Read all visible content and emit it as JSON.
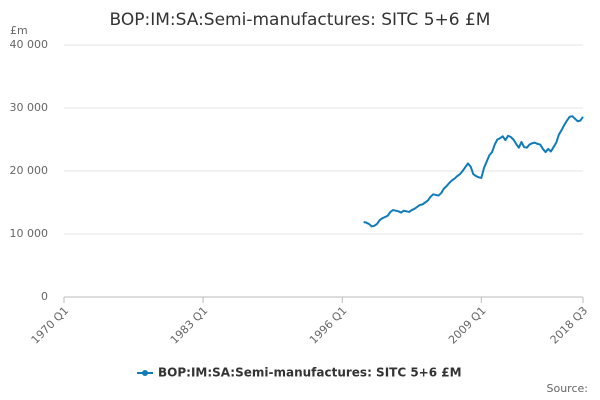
{
  "chart_data": {
    "type": "line",
    "title": "BOP:IM:SA:Semi-manufactures: SITC 5+6 £M",
    "y_label": "£m",
    "source": "Source:",
    "categories": [
      "1970 Q1",
      null,
      null,
      null,
      null,
      null,
      null,
      null,
      null,
      null,
      null,
      null,
      null,
      null,
      null,
      null,
      null,
      null,
      null,
      null,
      null,
      null,
      null,
      null,
      null,
      null,
      null,
      null,
      null,
      null,
      null,
      null,
      null,
      null,
      null,
      null,
      null,
      null,
      null,
      null,
      null,
      null,
      null,
      null,
      null,
      null,
      null,
      null,
      null,
      null,
      null,
      null,
      "1983 Q1",
      null,
      null,
      null,
      null,
      null,
      null,
      null,
      null,
      null,
      null,
      null,
      null,
      null,
      null,
      null,
      null,
      null,
      null,
      null,
      null,
      null,
      null,
      null,
      null,
      null,
      null,
      null,
      null,
      null,
      null,
      null,
      null,
      null,
      null,
      null,
      null,
      null,
      null,
      null,
      null,
      null,
      null,
      null,
      null,
      null,
      null,
      null,
      null,
      null,
      null,
      null,
      "1996 Q1",
      null,
      null,
      null,
      null,
      null,
      null,
      null,
      null,
      null,
      null,
      null,
      null,
      null,
      null,
      null,
      null,
      null,
      null,
      null,
      null,
      null,
      null,
      null,
      null,
      null,
      null,
      null,
      null,
      null,
      null,
      null,
      null,
      null,
      null,
      null,
      null,
      null,
      null,
      null,
      null,
      null,
      null,
      null,
      null,
      null,
      null,
      null,
      null,
      null,
      null,
      null,
      "2009 Q1",
      null,
      null,
      null,
      null,
      null,
      null,
      null,
      null,
      null,
      null,
      null,
      null,
      null,
      null,
      null,
      null,
      null,
      null,
      null,
      null,
      null,
      null,
      null,
      null,
      null,
      null,
      null,
      null,
      null,
      null,
      null,
      null,
      null,
      null,
      null,
      null,
      null,
      "2018 Q3"
    ],
    "series": [
      {
        "name": "BOP:IM:SA:Semi-manufactures: SITC 5+6 £M",
        "color": "#0f7bb8",
        "values": [
          null,
          null,
          null,
          null,
          null,
          null,
          null,
          null,
          null,
          null,
          null,
          null,
          null,
          null,
          null,
          null,
          null,
          null,
          null,
          null,
          null,
          null,
          null,
          null,
          null,
          null,
          null,
          null,
          null,
          null,
          null,
          null,
          null,
          null,
          null,
          null,
          null,
          null,
          null,
          null,
          null,
          null,
          null,
          null,
          null,
          null,
          null,
          null,
          null,
          null,
          null,
          null,
          null,
          null,
          null,
          null,
          null,
          null,
          null,
          null,
          null,
          null,
          null,
          null,
          null,
          null,
          null,
          null,
          null,
          null,
          null,
          null,
          null,
          null,
          null,
          null,
          null,
          null,
          null,
          null,
          null,
          null,
          null,
          null,
          null,
          null,
          null,
          null,
          null,
          null,
          null,
          null,
          null,
          null,
          null,
          null,
          null,
          null,
          null,
          null,
          null,
          null,
          null,
          null,
          null,
          null,
          null,
          null,
          null,
          null,
          null,
          null,
          11900,
          11800,
          11600,
          11200,
          11300,
          11600,
          12200,
          12500,
          12700,
          12900,
          13500,
          13800,
          13700,
          13600,
          13400,
          13700,
          13600,
          13500,
          13800,
          14000,
          14300,
          14600,
          14700,
          15000,
          15300,
          15900,
          16300,
          16200,
          16100,
          16500,
          17200,
          17600,
          18100,
          18500,
          18800,
          19200,
          19500,
          20000,
          20600,
          21200,
          20700,
          19500,
          19200,
          19000,
          18900,
          20500,
          21500,
          22500,
          23000,
          24200,
          25000,
          25200,
          25500,
          24900,
          25600,
          25400,
          25000,
          24300,
          23700,
          24600,
          23800,
          23700,
          24200,
          24400,
          24500,
          24300,
          24200,
          23500,
          23000,
          23500,
          23100,
          23800,
          24500,
          25800,
          26500,
          27300,
          28000,
          28600,
          28700,
          28300,
          27900,
          28000,
          28600
        ]
      }
    ],
    "ylim": [
      0,
      40000
    ],
    "yticks": [
      0,
      {
        "value": 10000,
        "label": "10 000"
      },
      {
        "value": 20000,
        "label": "20 000"
      },
      {
        "value": 30000,
        "label": "30 000"
      },
      {
        "value": 40000,
        "label": "40 000"
      }
    ],
    "grid": true
  }
}
